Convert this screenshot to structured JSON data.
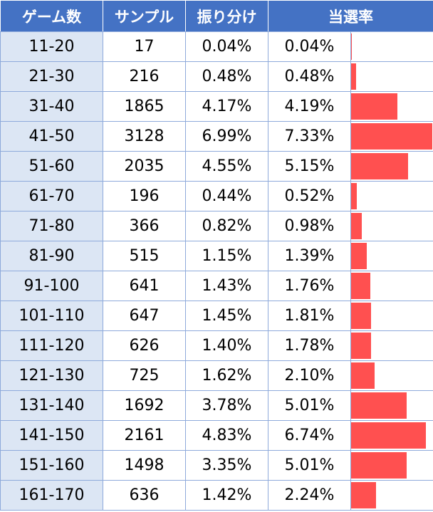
{
  "header": {
    "games": "ゲーム数",
    "sample": "サンプル",
    "distribution": "振り分け",
    "hit_rate": "当選率"
  },
  "bar_max_percent": 7.33,
  "bar_color": "#ff5050",
  "rows": [
    {
      "games": "11-20",
      "sample": "17",
      "distribution": "0.04%",
      "hit_rate": "0.04%",
      "hit_value": 0.04
    },
    {
      "games": "21-30",
      "sample": "216",
      "distribution": "0.48%",
      "hit_rate": "0.48%",
      "hit_value": 0.48
    },
    {
      "games": "31-40",
      "sample": "1865",
      "distribution": "4.17%",
      "hit_rate": "4.19%",
      "hit_value": 4.19
    },
    {
      "games": "41-50",
      "sample": "3128",
      "distribution": "6.99%",
      "hit_rate": "7.33%",
      "hit_value": 7.33
    },
    {
      "games": "51-60",
      "sample": "2035",
      "distribution": "4.55%",
      "hit_rate": "5.15%",
      "hit_value": 5.15
    },
    {
      "games": "61-70",
      "sample": "196",
      "distribution": "0.44%",
      "hit_rate": "0.52%",
      "hit_value": 0.52
    },
    {
      "games": "71-80",
      "sample": "366",
      "distribution": "0.82%",
      "hit_rate": "0.98%",
      "hit_value": 0.98
    },
    {
      "games": "81-90",
      "sample": "515",
      "distribution": "1.15%",
      "hit_rate": "1.39%",
      "hit_value": 1.39
    },
    {
      "games": "91-100",
      "sample": "641",
      "distribution": "1.43%",
      "hit_rate": "1.76%",
      "hit_value": 1.76
    },
    {
      "games": "101-110",
      "sample": "647",
      "distribution": "1.45%",
      "hit_rate": "1.81%",
      "hit_value": 1.81
    },
    {
      "games": "111-120",
      "sample": "626",
      "distribution": "1.40%",
      "hit_rate": "1.78%",
      "hit_value": 1.78
    },
    {
      "games": "121-130",
      "sample": "725",
      "distribution": "1.62%",
      "hit_rate": "2.10%",
      "hit_value": 2.1
    },
    {
      "games": "131-140",
      "sample": "1692",
      "distribution": "3.78%",
      "hit_rate": "5.01%",
      "hit_value": 5.01
    },
    {
      "games": "141-150",
      "sample": "2161",
      "distribution": "4.83%",
      "hit_rate": "6.74%",
      "hit_value": 6.74
    },
    {
      "games": "151-160",
      "sample": "1498",
      "distribution": "3.35%",
      "hit_rate": "5.01%",
      "hit_value": 5.01
    },
    {
      "games": "161-170",
      "sample": "636",
      "distribution": "1.42%",
      "hit_rate": "2.24%",
      "hit_value": 2.24
    }
  ]
}
